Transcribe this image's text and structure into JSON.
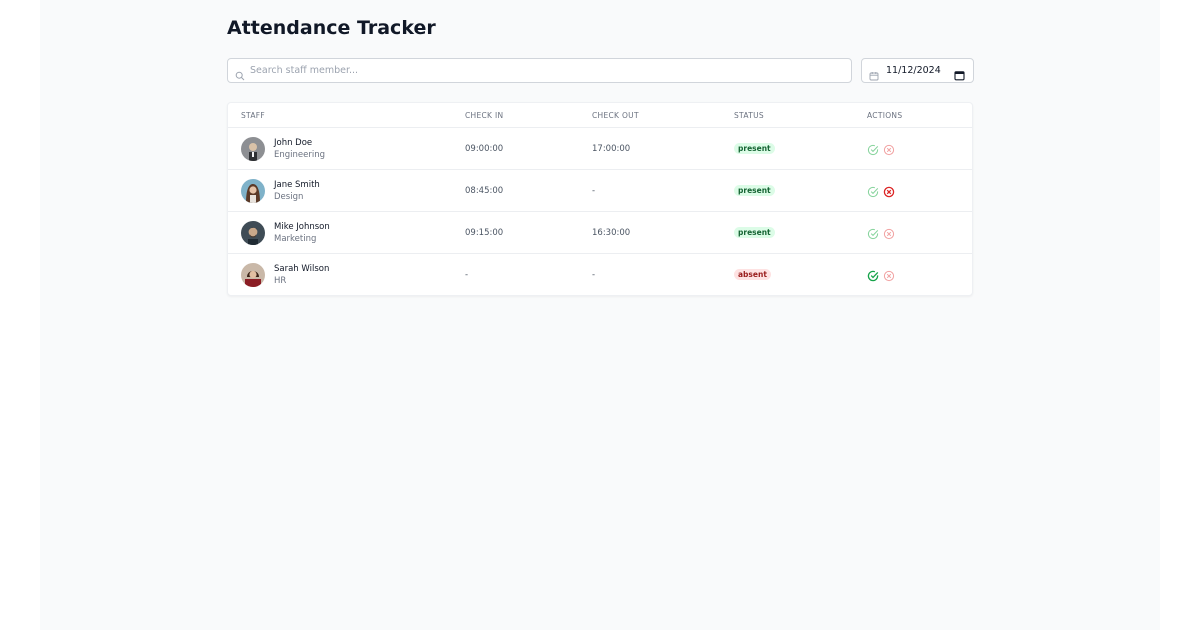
{
  "page": {
    "title": "Attendance Tracker"
  },
  "search": {
    "placeholder": "Search staff member..."
  },
  "date": {
    "value": "11/12/2024"
  },
  "table": {
    "headers": {
      "staff": "STAFF",
      "check_in": "CHECK IN",
      "check_out": "CHECK OUT",
      "status": "STATUS",
      "actions": "ACTIONS"
    },
    "rows": [
      {
        "name": "John Doe",
        "department": "Engineering",
        "check_in": "09:00:00",
        "check_out": "17:00:00",
        "status": "present"
      },
      {
        "name": "Jane Smith",
        "department": "Design",
        "check_in": "08:45:00",
        "check_out": "-",
        "status": "present"
      },
      {
        "name": "Mike Johnson",
        "department": "Marketing",
        "check_in": "09:15:00",
        "check_out": "16:30:00",
        "status": "present"
      },
      {
        "name": "Sarah Wilson",
        "department": "HR",
        "check_in": "-",
        "check_out": "-",
        "status": "absent"
      }
    ]
  },
  "icons": {
    "search": "search-icon",
    "calendar": "calendar-icon",
    "present_action": "check-circle-icon",
    "absent_action": "x-circle-icon"
  },
  "colors": {
    "present_badge_bg": "#dcfce7",
    "present_badge_text": "#166534",
    "absent_badge_bg": "#fee2e2",
    "absent_badge_text": "#991b1b",
    "check_green": "#16a34a",
    "x_red": "#dc2626"
  }
}
